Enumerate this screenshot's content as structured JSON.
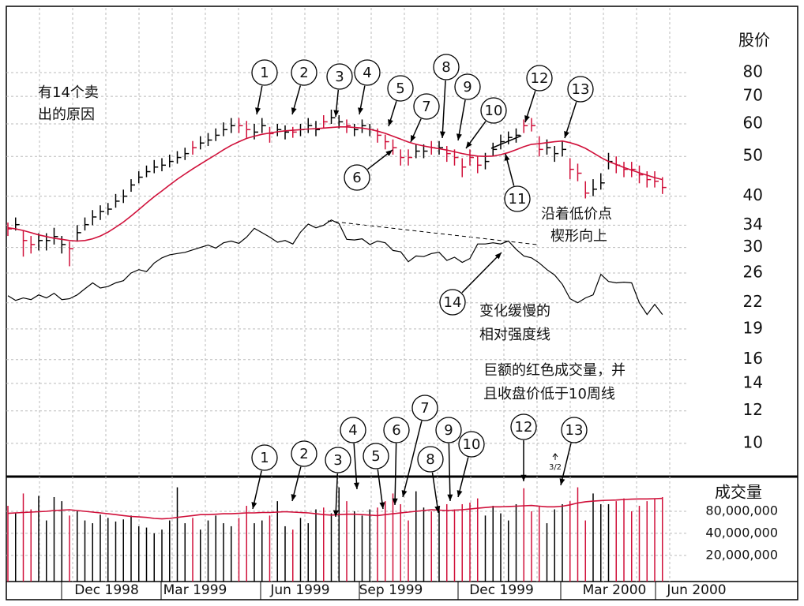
{
  "chart_data": {
    "type": "stock",
    "y_title": "股价",
    "log_scale": true,
    "grid": true,
    "ylim": [
      8.3,
      115
    ],
    "yticks": [
      80,
      70,
      60,
      50,
      40,
      34,
      30,
      26,
      22,
      19,
      16,
      14,
      12,
      10
    ],
    "bar_color": "#000000",
    "highlight_color": "#d0103a",
    "highlight": [
      0,
      2,
      3,
      8,
      24,
      30,
      31,
      34,
      37,
      41,
      44,
      48,
      49,
      50,
      51,
      52,
      55,
      57,
      58,
      59,
      60,
      61,
      67,
      68,
      69,
      73,
      74,
      75,
      79,
      80,
      81,
      82,
      83,
      84,
      85
    ],
    "high": [
      34.5,
      35.5,
      33,
      32,
      32.5,
      32.5,
      33.5,
      32,
      31,
      34,
      35.5,
      37,
      38,
      38.5,
      40.5,
      41.5,
      44,
      46,
      47.5,
      49,
      49.5,
      50.5,
      51.5,
      52.5,
      54.5,
      56,
      57,
      58.5,
      60.5,
      62,
      62,
      61,
      60,
      62,
      59,
      60,
      59.5,
      59,
      60,
      62,
      61,
      63,
      65,
      63,
      61.5,
      60,
      61.5,
      60,
      58.5,
      56.5,
      55,
      52,
      52,
      53.5,
      53.5,
      54.5,
      54.5,
      53,
      52,
      49.5,
      52,
      50,
      51,
      54,
      56.5,
      57.5,
      58.5,
      61.5,
      62,
      56,
      55,
      53,
      54.5,
      49.5,
      48,
      43.5,
      44,
      45.5,
      51,
      50,
      48.5,
      48.5,
      47.5,
      46,
      46,
      44.5
    ],
    "low": [
      32,
      33,
      28.5,
      29,
      29.5,
      29.5,
      30.5,
      29,
      27,
      31,
      33,
      34,
      35,
      36,
      37.5,
      38.5,
      41,
      43,
      44.5,
      45.5,
      46,
      47,
      48,
      49,
      50.5,
      52,
      53,
      54.5,
      56,
      57,
      57,
      55.5,
      55,
      57,
      54,
      56,
      55,
      55.5,
      56,
      57,
      56,
      58.5,
      60,
      58.5,
      57,
      56,
      57,
      56,
      54,
      52,
      50.5,
      47.5,
      47.5,
      49.5,
      49.5,
      50.5,
      50.5,
      48.5,
      47.5,
      44.5,
      47.5,
      45.5,
      46.5,
      50,
      52,
      53.5,
      54,
      57,
      57.5,
      50,
      50.5,
      48.5,
      50,
      44,
      43.5,
      39.5,
      40,
      41.5,
      46.5,
      45.5,
      44.5,
      44.5,
      43,
      42,
      42,
      40.5
    ],
    "close": [
      33.3,
      34.1,
      31.2,
      30.5,
      31.2,
      31.2,
      31.9,
      30.5,
      29.8,
      32.6,
      34.1,
      35.6,
      36.7,
      37.2,
      38.9,
      40,
      42.6,
      44.5,
      45.9,
      47.1,
      47.6,
      48.6,
      49.7,
      50.8,
      52.5,
      53.9,
      54.8,
      56.3,
      58.1,
      59.4,
      59.4,
      58.1,
      57.3,
      59.4,
      56.8,
      58.1,
      57.3,
      57.3,
      58.1,
      59.4,
      58.1,
      60.7,
      62.1,
      60.7,
      59.4,
      58.1,
      59.4,
      58.1,
      56.3,
      54.3,
      52.5,
      49.7,
      49.7,
      51.5,
      51.5,
      52.5,
      52.5,
      50.8,
      49.7,
      47.1,
      49.7,
      47.6,
      48.6,
      52.0,
      54.3,
      55.6,
      56.3,
      59.4,
      59.4,
      52.0,
      52.5,
      50.8,
      52.0,
      46.5,
      45.5,
      40.7,
      41.6,
      43.1,
      48.6,
      47.6,
      46.5,
      46.5,
      45.1,
      43.9,
      43.5,
      42.0
    ],
    "ma10": {
      "color": "#d0103a",
      "values": [
        33.5,
        33.3,
        33,
        32.6,
        32.2,
        31.9,
        31.6,
        31.4,
        31.2,
        31.1,
        31.2,
        31.5,
        32,
        32.7,
        33.6,
        34.6,
        35.8,
        37.1,
        38.5,
        39.9,
        41.2,
        42.6,
        44,
        45.3,
        46.6,
        47.9,
        49.2,
        50.5,
        51.9,
        53.2,
        54.3,
        55.3,
        56,
        56.6,
        57,
        57.4,
        57.7,
        57.9,
        58.1,
        58.3,
        58.4,
        58.6,
        58.8,
        59,
        59,
        58.8,
        58.6,
        58.2,
        57.6,
        56.9,
        56,
        55.1,
        54.2,
        53.5,
        53,
        52.6,
        52.2,
        51.8,
        51.3,
        50.8,
        50.4,
        50.1,
        50,
        50.1,
        50.5,
        51.1,
        51.9,
        52.8,
        53.5,
        53.7,
        54,
        54.3,
        54.5,
        54,
        53.3,
        52.3,
        51,
        49.7,
        48.6,
        47.8,
        47,
        46.3,
        45.6,
        45,
        44.4,
        43.9
      ]
    },
    "rs": {
      "color": "#000000",
      "values": [
        22.9,
        22.3,
        22.6,
        22.4,
        23,
        22.6,
        23.2,
        22.4,
        22.5,
        23,
        23.8,
        24.6,
        23.9,
        24.1,
        24.6,
        24.9,
        26,
        26.5,
        26.2,
        27.5,
        28.3,
        28.8,
        29,
        29.2,
        29.6,
        30,
        30.4,
        29.9,
        30.8,
        31.1,
        30.7,
        31.8,
        33.4,
        32.6,
        31.8,
        30.9,
        31.2,
        30.6,
        32.7,
        34.2,
        33.5,
        34,
        35,
        34.3,
        31.4,
        31.3,
        31.5,
        30.5,
        31.1,
        30.8,
        29.5,
        29.3,
        27.7,
        28.6,
        28.5,
        29,
        29.2,
        27.9,
        28.4,
        27.6,
        28.2,
        30.6,
        30.6,
        30.8,
        30.6,
        31.1,
        29.7,
        28.6,
        28.3,
        27.5,
        26.5,
        25.7,
        24.4,
        22.5,
        22,
        22.6,
        23,
        25.8,
        24.8,
        24.6,
        24.7,
        24.6,
        22,
        20.6,
        21.8,
        20.6
      ]
    },
    "volume": {
      "title": "成交量",
      "ylim": [
        8800000,
        238000000
      ],
      "yticks": [
        {
          "value": 80000000,
          "label": "80,000,000"
        },
        {
          "value": 40000000,
          "label": "40,000,000"
        },
        {
          "value": 20000000,
          "label": "20,000,000"
        }
      ],
      "values": [
        95000000,
        75000000,
        140000000,
        85000000,
        130000000,
        60000000,
        125000000,
        110000000,
        70000000,
        80000000,
        60000000,
        55000000,
        72000000,
        65000000,
        58000000,
        62000000,
        70000000,
        50000000,
        48000000,
        40000000,
        45000000,
        60000000,
        170000000,
        55000000,
        65000000,
        45000000,
        60000000,
        70000000,
        55000000,
        50000000,
        65000000,
        95000000,
        55000000,
        60000000,
        70000000,
        110000000,
        50000000,
        45000000,
        65000000,
        55000000,
        85000000,
        90000000,
        75000000,
        170000000,
        110000000,
        80000000,
        70000000,
        85000000,
        90000000,
        110000000,
        140000000,
        100000000,
        60000000,
        150000000,
        90000000,
        80000000,
        95000000,
        100000000,
        85000000,
        100000000,
        105000000,
        120000000,
        70000000,
        95000000,
        75000000,
        60000000,
        100000000,
        165000000,
        80000000,
        95000000,
        55000000,
        85000000,
        100000000,
        110000000,
        170000000,
        60000000,
        140000000,
        100000000,
        100000000,
        110000000,
        120000000,
        80000000,
        95000000,
        110000000,
        120000000,
        125000000
      ],
      "ma": {
        "color": "#d0103a",
        "values": [
          75000000,
          76000000,
          77000000,
          78000000,
          79000000,
          80000000,
          82000000,
          83000000,
          84000000,
          82000000,
          80000000,
          78000000,
          76000000,
          74000000,
          72000000,
          70000000,
          68000000,
          67000000,
          66000000,
          64000000,
          63000000,
          64000000,
          66000000,
          68000000,
          70000000,
          72000000,
          72000000,
          73000000,
          74000000,
          74000000,
          75000000,
          76000000,
          76000000,
          77000000,
          77000000,
          78000000,
          79000000,
          78000000,
          77000000,
          76000000,
          74000000,
          72000000,
          71000000,
          72000000,
          73000000,
          73000000,
          72000000,
          71000000,
          70000000,
          72000000,
          74000000,
          76000000,
          78000000,
          80000000,
          82000000,
          84000000,
          83000000,
          82000000,
          83000000,
          84000000,
          86000000,
          88000000,
          90000000,
          92000000,
          92000000,
          93000000,
          94000000,
          95000000,
          96000000,
          94000000,
          92000000,
          92000000,
          94000000,
          98000000,
          104000000,
          108000000,
          110000000,
          112000000,
          113000000,
          114000000,
          116000000,
          117000000,
          118000000,
          118000000,
          119000000,
          120000000
        ]
      }
    },
    "x_labels": [
      "Dec 1998",
      "Mar 1999",
      "Jun 1999",
      "Sep 1999",
      "Dec 1999",
      "Mar 2000",
      "Jun 2000"
    ],
    "price_markers": [
      "1",
      "2",
      "3",
      "4",
      "5",
      "6",
      "7",
      "8",
      "9",
      "10",
      "11",
      "12",
      "13",
      "14"
    ],
    "volume_markers": [
      "1",
      "2",
      "3",
      "4",
      "5",
      "6",
      "7",
      "8",
      "9",
      "10",
      "12",
      "13"
    ],
    "volume_note": "3/2",
    "notes": [
      "有14个卖",
      "出的原因",
      "沿着低价点",
      "楔形向上",
      "变化缓慢的",
      "相对强度线",
      "巨额的红色成交量，并",
      "且收盘价低于10周线"
    ]
  }
}
